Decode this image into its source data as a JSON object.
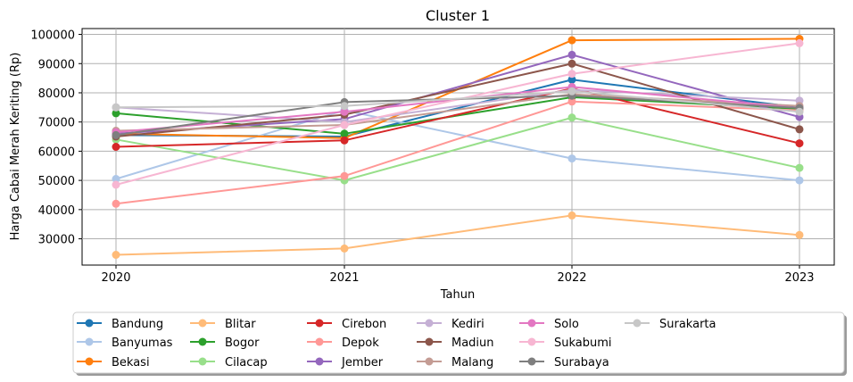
{
  "chart_data": {
    "type": "line",
    "title": "Cluster 1",
    "xlabel": "Tahun",
    "ylabel": "Harga Cabai Merah Keriting (Rp)",
    "x": [
      "2020",
      "2021",
      "2022",
      "2023"
    ],
    "ylim": [
      21000,
      102000
    ],
    "yticks": [
      30000,
      40000,
      50000,
      60000,
      70000,
      80000,
      90000,
      100000
    ],
    "grid": true,
    "legend_position": "bottom-center, 7 columns",
    "series": [
      {
        "name": "Bandung",
        "color": "#1f77b4",
        "values": [
          65500,
          65000,
          84500,
          75000
        ]
      },
      {
        "name": "Banyumas",
        "color": "#aec7e8",
        "values": [
          50500,
          74000,
          57500,
          50000
        ]
      },
      {
        "name": "Bekasi",
        "color": "#ff7f0e",
        "values": [
          66000,
          64500,
          98000,
          98500
        ]
      },
      {
        "name": "Blitar",
        "color": "#ffbb78",
        "values": [
          24500,
          26700,
          38000,
          31300
        ]
      },
      {
        "name": "Bogor",
        "color": "#2ca02c",
        "values": [
          73000,
          66000,
          78500,
          74500
        ]
      },
      {
        "name": "Cilacap",
        "color": "#98df8a",
        "values": [
          64000,
          50000,
          71500,
          54300
        ]
      },
      {
        "name": "Cirebon",
        "color": "#d62728",
        "values": [
          61500,
          63700,
          81500,
          62700
        ]
      },
      {
        "name": "Depok",
        "color": "#ff9896",
        "values": [
          42000,
          51500,
          77000,
          74000
        ]
      },
      {
        "name": "Jember",
        "color": "#9467bd",
        "values": [
          66000,
          71000,
          93000,
          71700
        ]
      },
      {
        "name": "Kediri",
        "color": "#c5b0d5",
        "values": [
          75000,
          70000,
          81000,
          77300
        ]
      },
      {
        "name": "Madiun",
        "color": "#8c564b",
        "values": [
          65000,
          72500,
          90000,
          67500
        ]
      },
      {
        "name": "Malang",
        "color": "#c49c94",
        "values": [
          67000,
          69000,
          79500,
          75500
        ]
      },
      {
        "name": "Solo",
        "color": "#e377c2",
        "values": [
          66500,
          73500,
          82000,
          74800
        ]
      },
      {
        "name": "Sukabumi",
        "color": "#f7b6d2",
        "values": [
          48500,
          69000,
          86500,
          97000
        ]
      },
      {
        "name": "Surabaya",
        "color": "#7f7f7f",
        "values": [
          65500,
          76800,
          79000,
          74800
        ]
      },
      {
        "name": "Surakarta",
        "color": "#c7c7c7",
        "values": [
          75000,
          75500,
          80500,
          73500
        ]
      }
    ]
  }
}
